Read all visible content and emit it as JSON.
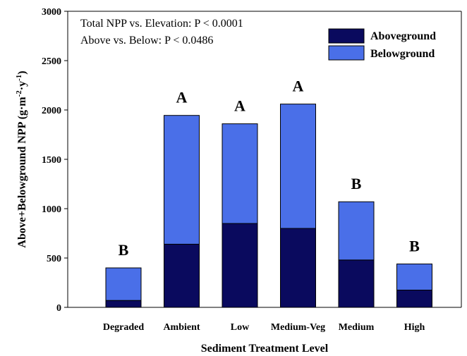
{
  "chart_data": {
    "type": "bar",
    "stacked": true,
    "categories": [
      "Degraded",
      "Ambient",
      "Low",
      "Medium-Veg",
      "Medium",
      "High"
    ],
    "series": [
      {
        "name": "Aboveground",
        "color": "#0a0a5e",
        "values": [
          70,
          640,
          850,
          800,
          480,
          175
        ]
      },
      {
        "name": "Belowground",
        "color": "#4a6fe8",
        "values": [
          330,
          1305,
          1010,
          1260,
          590,
          265
        ]
      }
    ],
    "significance_letters": [
      "B",
      "A",
      "A",
      "A",
      "B",
      "B"
    ],
    "xlabel": "Sediment Treatment Level",
    "ylabel_main": "Above+Belowground NPP (g·m",
    "ylabel_sup1": "-2",
    "ylabel_mid": "·y",
    "ylabel_sup2": "-1",
    "ylabel_end": ")",
    "ylim": [
      0,
      3000
    ],
    "yticks": [
      0,
      500,
      1000,
      1500,
      2000,
      2500,
      3000
    ],
    "annotations": [
      "Total NPP vs. Elevation: P < 0.0001",
      "Above vs. Below: P < 0.0486"
    ],
    "legend_position": "top-right",
    "grid": false
  }
}
